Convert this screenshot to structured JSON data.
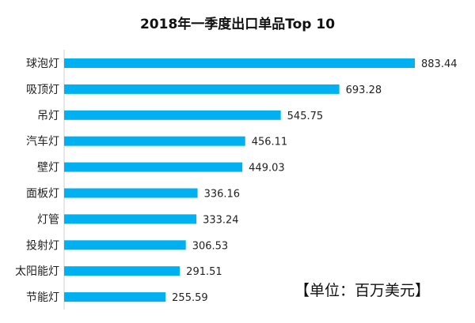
{
  "chart_data": {
    "type": "bar",
    "orientation": "horizontal",
    "title": "2018年一季度出口单品Top 10",
    "categories": [
      "球泡灯",
      "吸顶灯",
      "吊灯",
      "汽车灯",
      "壁灯",
      "面板灯",
      "灯管",
      "投射灯",
      "太阳能灯",
      "节能灯"
    ],
    "values": [
      883.44,
      693.28,
      545.75,
      456.11,
      449.03,
      336.16,
      333.24,
      306.53,
      291.51,
      255.59
    ],
    "value_labels": [
      "883.44",
      "693.28",
      "545.75",
      "456.11",
      "449.03",
      "336.16",
      "333.24",
      "306.53",
      "291.51",
      "255.59"
    ],
    "xlim": [
      0,
      883.44
    ],
    "grid": false,
    "legend": "none",
    "bar_color": "#00b0f0",
    "unit_note": "【单位：百万美元】"
  }
}
